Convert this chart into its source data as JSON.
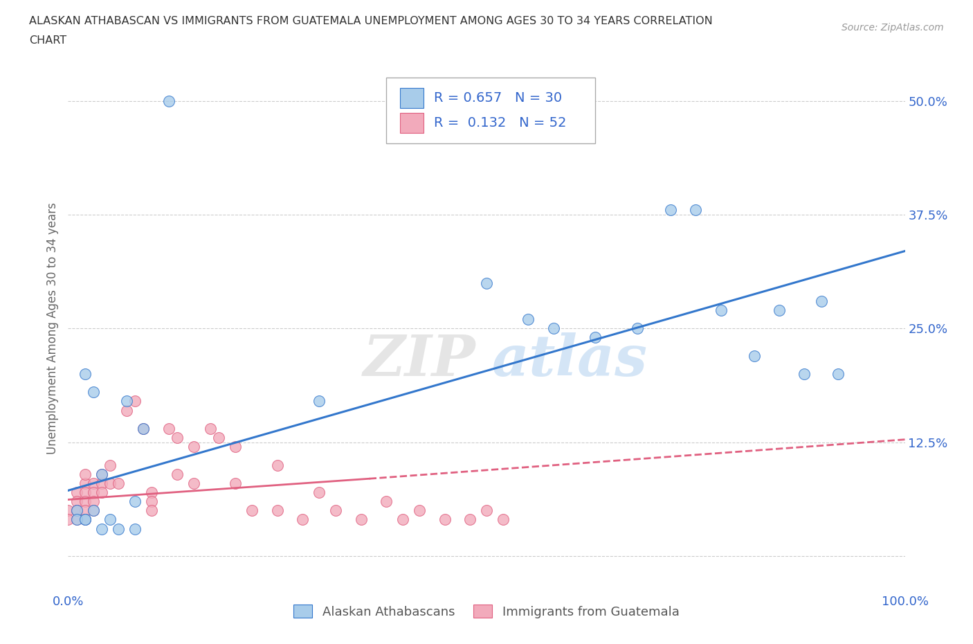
{
  "title_line1": "ALASKAN ATHABASCAN VS IMMIGRANTS FROM GUATEMALA UNEMPLOYMENT AMONG AGES 30 TO 34 YEARS CORRELATION",
  "title_line2": "CHART",
  "source": "Source: ZipAtlas.com",
  "ylabel": "Unemployment Among Ages 30 to 34 years",
  "xlim": [
    0,
    1.0
  ],
  "ylim": [
    -0.04,
    0.54
  ],
  "xticks": [
    0.0,
    0.25,
    0.5,
    0.75,
    1.0
  ],
  "xticklabels": [
    "0.0%",
    "",
    "",
    "",
    "100.0%"
  ],
  "ytick_positions": [
    0.0,
    0.125,
    0.25,
    0.375,
    0.5
  ],
  "yticklabels": [
    "",
    "12.5%",
    "25.0%",
    "37.5%",
    "50.0%"
  ],
  "blue_r": 0.657,
  "blue_n": 30,
  "pink_r": 0.132,
  "pink_n": 52,
  "blue_color": "#A8CCEA",
  "pink_color": "#F2AABB",
  "blue_line_color": "#3377CC",
  "pink_line_color": "#E06080",
  "grid_color": "#CCCCCC",
  "blue_scatter_x": [
    0.12,
    0.02,
    0.04,
    0.01,
    0.02,
    0.03,
    0.05,
    0.06,
    0.08,
    0.08,
    0.07,
    0.03,
    0.3,
    0.5,
    0.55,
    0.58,
    0.63,
    0.68,
    0.72,
    0.75,
    0.78,
    0.82,
    0.85,
    0.88,
    0.9,
    0.92,
    0.01,
    0.02,
    0.04,
    0.09
  ],
  "blue_scatter_y": [
    0.5,
    0.2,
    0.09,
    0.05,
    0.04,
    0.05,
    0.04,
    0.03,
    0.03,
    0.06,
    0.17,
    0.18,
    0.17,
    0.3,
    0.26,
    0.25,
    0.24,
    0.25,
    0.38,
    0.38,
    0.27,
    0.22,
    0.27,
    0.2,
    0.28,
    0.2,
    0.04,
    0.04,
    0.03,
    0.14
  ],
  "pink_scatter_x": [
    0.0,
    0.0,
    0.01,
    0.01,
    0.01,
    0.01,
    0.01,
    0.02,
    0.02,
    0.02,
    0.02,
    0.02,
    0.02,
    0.03,
    0.03,
    0.03,
    0.03,
    0.04,
    0.04,
    0.04,
    0.05,
    0.05,
    0.06,
    0.07,
    0.08,
    0.09,
    0.1,
    0.1,
    0.1,
    0.12,
    0.13,
    0.13,
    0.15,
    0.15,
    0.17,
    0.18,
    0.2,
    0.2,
    0.22,
    0.25,
    0.25,
    0.28,
    0.3,
    0.32,
    0.35,
    0.38,
    0.4,
    0.42,
    0.45,
    0.48,
    0.5,
    0.52
  ],
  "pink_scatter_y": [
    0.05,
    0.04,
    0.07,
    0.06,
    0.05,
    0.05,
    0.04,
    0.08,
    0.09,
    0.07,
    0.06,
    0.05,
    0.04,
    0.08,
    0.07,
    0.06,
    0.05,
    0.09,
    0.08,
    0.07,
    0.1,
    0.08,
    0.08,
    0.16,
    0.17,
    0.14,
    0.07,
    0.06,
    0.05,
    0.14,
    0.13,
    0.09,
    0.12,
    0.08,
    0.14,
    0.13,
    0.12,
    0.08,
    0.05,
    0.1,
    0.05,
    0.04,
    0.07,
    0.05,
    0.04,
    0.06,
    0.04,
    0.05,
    0.04,
    0.04,
    0.05,
    0.04
  ],
  "blue_line_x0": 0.0,
  "blue_line_y0": 0.072,
  "blue_line_x1": 1.0,
  "blue_line_y1": 0.335,
  "pink_line_x0": 0.0,
  "pink_line_y0": 0.062,
  "pink_line_solid_x1": 0.36,
  "pink_line_y_at_solid_x1": 0.085,
  "pink_line_x1": 1.0,
  "pink_line_y1": 0.128
}
